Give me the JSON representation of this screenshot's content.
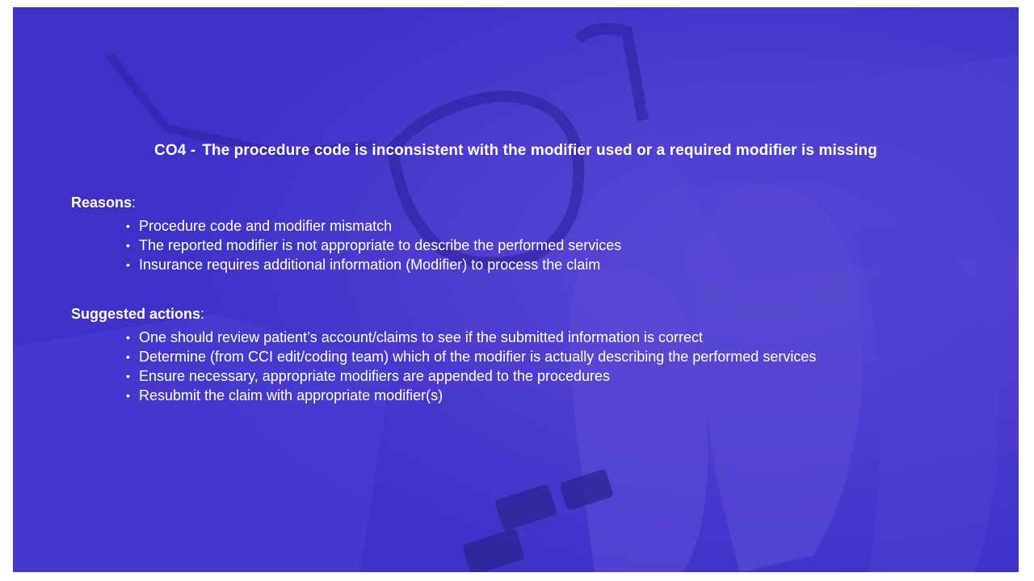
{
  "slide": {
    "title_code": "CO4 -",
    "title_text": "The procedure code is inconsistent with the modifier used or a required modifier is missing",
    "bullet_glyph": "•",
    "reasons": {
      "heading": "Reasons",
      "colon": ":",
      "items": [
        "Procedure code and modifier mismatch",
        "The reported modifier is not appropriate to describe the performed services",
        "Insurance requires additional information (Modifier) to process the claim"
      ]
    },
    "actions": {
      "heading": "Suggested actions",
      "colon": ":",
      "items": [
        "One should review patient’s account/claims to see if the submitted information is correct",
        "Determine (from CCI edit/coding team) which of the modifier is actually describing the performed services",
        "Ensure necessary, appropriate modifiers are appended to the procedures",
        "Resubmit the claim with appropriate modifier(s)"
      ]
    }
  },
  "colors": {
    "overlay": "#3f31c8",
    "text": "#ffffff"
  }
}
